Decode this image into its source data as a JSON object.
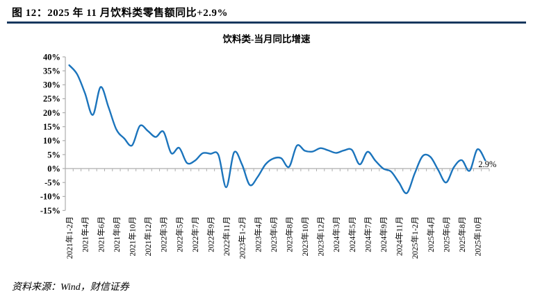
{
  "figure": {
    "caption": "图 12：2025 年 11 月饮料类零售额同比+2.9%",
    "source": "资料来源：Wind，财信证券"
  },
  "chart_data": {
    "type": "line",
    "title": "饮料类-当月同比增速",
    "unit": "%",
    "smoothed": true,
    "grid": false,
    "legend": "none",
    "ylim": [
      -15,
      40
    ],
    "ytick_step": 5,
    "xtick_every": 2,
    "categories": [
      "2021年1-2月",
      "2021年3月",
      "2021年4月",
      "2021年5月",
      "2021年6月",
      "2021年7月",
      "2021年8月",
      "2021年9月",
      "2021年10月",
      "2021年11月",
      "2021年12月",
      "2022年1-2月",
      "2022年3月",
      "2022年4月",
      "2022年5月",
      "2022年6月",
      "2022年7月",
      "2022年8月",
      "2022年9月",
      "2022年10月",
      "2022年11月",
      "2022年12月",
      "2023年1-2月",
      "2023年3月",
      "2023年4月",
      "2023年5月",
      "2023年6月",
      "2023年7月",
      "2023年8月",
      "2023年9月",
      "2023年10月",
      "2023年11月",
      "2023年12月",
      "2024年1-2月",
      "2024年3月",
      "2024年4月",
      "2024年5月",
      "2024年6月",
      "2024年7月",
      "2024年8月",
      "2024年9月",
      "2024年10月",
      "2024年11月",
      "2024年12月",
      "2025年1-2月",
      "2025年3月",
      "2025年4月",
      "2025年5月",
      "2025年6月",
      "2025年7月",
      "2025年8月",
      "2025年9月",
      "2025年10月",
      "2025年11月"
    ],
    "values": [
      37.0,
      33.8,
      27.0,
      19.2,
      29.2,
      22.0,
      14.0,
      10.8,
      8.3,
      15.3,
      13.5,
      11.3,
      13.2,
      5.5,
      7.4,
      2.0,
      2.8,
      5.5,
      5.3,
      4.9,
      -6.7,
      5.8,
      1.5,
      -5.9,
      -3.0,
      1.5,
      3.6,
      3.7,
      0.6,
      8.2,
      6.4,
      6.1,
      7.3,
      6.5,
      5.6,
      6.5,
      6.7,
      1.5,
      6.0,
      2.8,
      0.0,
      -1.1,
      -5.0,
      -8.8,
      -1.8,
      4.4,
      4.2,
      -0.5,
      -5.0,
      0.5,
      3.0,
      -0.8,
      6.9,
      2.9
    ],
    "annotation": {
      "text": "2.9%",
      "category": "2025年11月"
    },
    "colors": {
      "line": "#1B74BC",
      "axis": "#ADADAD",
      "text": "#000000",
      "rule": "#17375E"
    }
  }
}
